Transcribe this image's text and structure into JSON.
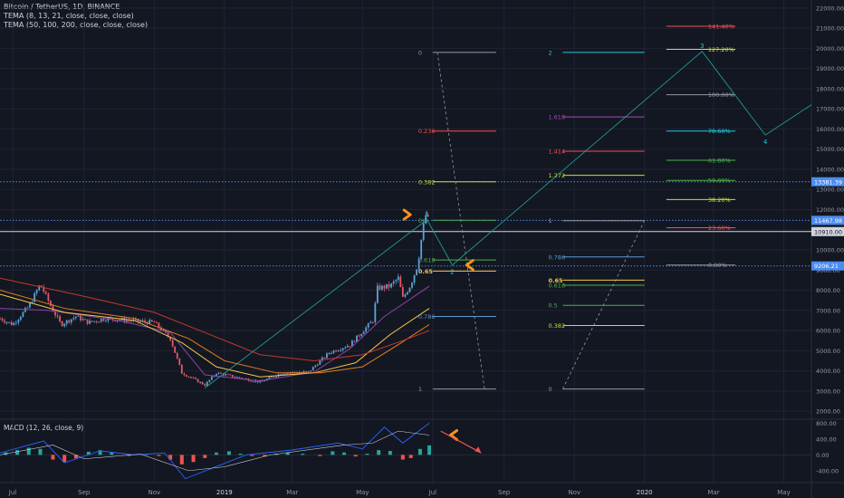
{
  "header": {
    "symbol_line": "Bitcoin / TetherUS, 1D, BINANCE",
    "indicator1": "TEMA (8, 13, 21, close, close, close)",
    "indicator2": "TEMA (50, 100, 200, close, close, close)"
  },
  "macd_label": "MACD (12, 26, close, 9)",
  "colors": {
    "background": "#131722",
    "grid": "#1f2433",
    "up_candle": "#5aa3d6",
    "down_candle": "#e05a6b",
    "tema_fast": "#8e44ad",
    "tema_mid": "#e06aa8",
    "tema_slow": "#b57edc",
    "tema50": "#f2c94c",
    "tema100": "#e67e22",
    "tema200": "#c0392b",
    "price_line_blue": "#4c8cf0",
    "price_line_white": "#d1d4dc",
    "arrow": "#f7931a",
    "hist_up": "#26a69a",
    "hist_down": "#ef5350"
  },
  "chart_data": {
    "type": "candlestick",
    "symbol": "Bitcoin / TetherUS",
    "interval": "1D",
    "exchange": "BINANCE",
    "x_ticks": [
      "Jul",
      "Sep",
      "Nov",
      "2019",
      "Mar",
      "May",
      "Jul",
      "Sep",
      "Nov",
      "2020",
      "Mar",
      "May"
    ],
    "y_ticks": [
      "2000.00",
      "3000.00",
      "4000.00",
      "5000.00",
      "6000.00",
      "7000.00",
      "8000.00",
      "9000.00",
      "10000.00",
      "11000.00",
      "12000.00",
      "13000.00",
      "14000.00",
      "15000.00",
      "16000.00",
      "17000.00",
      "18000.00",
      "19000.00",
      "20000.00",
      "21000.00",
      "22000.00"
    ],
    "ylim": [
      1600,
      22400
    ],
    "x_range": [
      "2018-06-20",
      "2020-05-25"
    ],
    "price_path": [
      [
        "2018-06-20",
        6600
      ],
      [
        "2018-07-01",
        6300
      ],
      [
        "2018-07-15",
        7200
      ],
      [
        "2018-07-25",
        8300
      ],
      [
        "2018-08-05",
        7000
      ],
      [
        "2018-08-12",
        6300
      ],
      [
        "2018-08-25",
        6700
      ],
      [
        "2018-09-05",
        6400
      ],
      [
        "2018-09-20",
        6600
      ],
      [
        "2018-10-10",
        6500
      ],
      [
        "2018-11-01",
        6400
      ],
      [
        "2018-11-15",
        5600
      ],
      [
        "2018-11-25",
        3900
      ],
      [
        "2018-12-15",
        3300
      ],
      [
        "2018-12-25",
        3900
      ],
      [
        "2019-01-10",
        3700
      ],
      [
        "2019-02-01",
        3450
      ],
      [
        "2019-02-20",
        3900
      ],
      [
        "2019-03-15",
        3950
      ],
      [
        "2019-04-02",
        4900
      ],
      [
        "2019-04-20",
        5300
      ],
      [
        "2019-05-10",
        6500
      ],
      [
        "2019-05-14",
        8100
      ],
      [
        "2019-05-25",
        8200
      ],
      [
        "2019-06-01",
        8600
      ],
      [
        "2019-06-05",
        7600
      ],
      [
        "2019-06-12",
        8300
      ],
      [
        "2019-06-18",
        9300
      ],
      [
        "2019-06-22",
        10900
      ],
      [
        "2019-06-26",
        12000
      ],
      [
        "2019-06-28",
        11000
      ]
    ],
    "tema_lines": [
      {
        "name": "TEMA fast",
        "color": "#8e44ad",
        "points": [
          [
            "2018-06-20",
            7100
          ],
          [
            "2018-08-01",
            7000
          ],
          [
            "2018-10-01",
            6500
          ],
          [
            "2018-11-15",
            5900
          ],
          [
            "2018-12-15",
            3800
          ],
          [
            "2019-02-01",
            3500
          ],
          [
            "2019-03-20",
            3950
          ],
          [
            "2019-04-20",
            5100
          ],
          [
            "2019-05-20",
            6700
          ],
          [
            "2019-06-28",
            8200
          ]
        ]
      },
      {
        "name": "TEMA 50",
        "color": "#f2c94c",
        "points": [
          [
            "2018-06-20",
            7800
          ],
          [
            "2018-08-15",
            6900
          ],
          [
            "2018-10-15",
            6500
          ],
          [
            "2018-11-25",
            5400
          ],
          [
            "2018-12-25",
            4200
          ],
          [
            "2019-02-01",
            3700
          ],
          [
            "2019-03-20",
            3900
          ],
          [
            "2019-04-25",
            4400
          ],
          [
            "2019-05-25",
            5800
          ],
          [
            "2019-06-28",
            7100
          ]
        ]
      },
      {
        "name": "TEMA 100",
        "color": "#e67e22",
        "points": [
          [
            "2018-06-20",
            8000
          ],
          [
            "2018-08-15",
            7100
          ],
          [
            "2018-10-15",
            6600
          ],
          [
            "2018-12-01",
            5600
          ],
          [
            "2019-01-01",
            4500
          ],
          [
            "2019-02-15",
            3900
          ],
          [
            "2019-03-25",
            3900
          ],
          [
            "2019-05-01",
            4200
          ],
          [
            "2019-06-01",
            5300
          ],
          [
            "2019-06-28",
            6300
          ]
        ]
      },
      {
        "name": "TEMA 200",
        "color": "#c0392b",
        "points": [
          [
            "2018-06-20",
            8600
          ],
          [
            "2018-09-01",
            7700
          ],
          [
            "2018-11-01",
            6900
          ],
          [
            "2018-12-15",
            5900
          ],
          [
            "2019-02-01",
            4800
          ],
          [
            "2019-03-20",
            4500
          ],
          [
            "2019-05-01",
            4800
          ],
          [
            "2019-06-05",
            5500
          ],
          [
            "2019-06-28",
            6000
          ]
        ]
      }
    ],
    "price_lines": [
      {
        "price": 13381.39,
        "label": "13381.39",
        "color": "#4c8cf0",
        "style": "dotted"
      },
      {
        "price": 11467.98,
        "label": "11467.98",
        "color": "#4c8cf0",
        "style": "dotted"
      },
      {
        "price": 10910.0,
        "label": "10910.00",
        "color": "#d1d4dc",
        "style": "solid"
      },
      {
        "price": 9206.21,
        "label": "9206.21",
        "color": "#4c8cf0",
        "style": "dotted"
      }
    ],
    "fib_sets": [
      {
        "name": "left",
        "x1": "2019-07-01",
        "x2": "2019-08-25",
        "levels": [
          {
            "label": "0",
            "price": 19800,
            "color": "#9598a1"
          },
          {
            "label": "0.236",
            "price": 15900,
            "color": "#ef5350"
          },
          {
            "label": "0.382",
            "price": 13380,
            "color": "#cddc39"
          },
          {
            "label": "0.5",
            "price": 11470,
            "color": "#4caf50"
          },
          {
            "label": "0.618",
            "price": 9500,
            "color": "#4caf50"
          },
          {
            "label": "0.65",
            "price": 8950,
            "color": "#f2c94c"
          },
          {
            "label": "0.786",
            "price": 6700,
            "color": "#5c9bd1"
          },
          {
            "label": "1",
            "price": 3100,
            "color": "#9598a1"
          }
        ]
      },
      {
        "name": "extension",
        "x1": "2019-10-22",
        "x2": "2020-01-01",
        "levels": [
          {
            "label": "2",
            "price": 19800,
            "color": "#26c6da"
          },
          {
            "label": "1.618",
            "price": 16600,
            "color": "#ab47bc"
          },
          {
            "label": "1.414",
            "price": 14900,
            "color": "#ef5350"
          },
          {
            "label": "1.272",
            "price": 13700,
            "color": "#cddc39"
          },
          {
            "label": "1",
            "price": 11450,
            "color": "#9598a1"
          },
          {
            "label": "0.786",
            "price": 9650,
            "color": "#5c9bd1"
          },
          {
            "label": "0.65",
            "price": 8500,
            "color": "#f2c94c"
          },
          {
            "label": "0.618",
            "price": 8250,
            "color": "#4caf50"
          },
          {
            "label": "0.5",
            "price": 7250,
            "color": "#4caf50"
          },
          {
            "label": "0.382",
            "price": 6250,
            "color": "#cddc39"
          },
          {
            "label": "0",
            "price": 3100,
            "color": "#9598a1"
          }
        ]
      },
      {
        "name": "right",
        "x1": "2020-01-20",
        "x2": "2020-03-20",
        "levels": [
          {
            "label": "141.40%",
            "price": 21100,
            "color": "#ef5350"
          },
          {
            "label": "127.20%",
            "price": 19950,
            "color": "#cddc39"
          },
          {
            "label": "100.00%",
            "price": 17700,
            "color": "#9598a1"
          },
          {
            "label": "78.60%",
            "price": 15900,
            "color": "#26c6da"
          },
          {
            "label": "61.80%",
            "price": 14450,
            "color": "#4caf50"
          },
          {
            "label": "50.00%",
            "price": 13450,
            "color": "#4caf50"
          },
          {
            "label": "38.20%",
            "price": 12500,
            "color": "#cddc39"
          },
          {
            "label": "23.60%",
            "price": 11100,
            "color": "#ef5350"
          },
          {
            "label": "0.00%",
            "price": 9250,
            "color": "#9598a1"
          }
        ]
      }
    ],
    "wave_points": [
      {
        "label": "",
        "date": "2018-12-15",
        "price": 3150
      },
      {
        "label": "1",
        "date": "2019-06-26",
        "price": 11500
      },
      {
        "label": "2",
        "date": "2019-07-18",
        "price": 9250
      },
      {
        "label": "3",
        "date": "2020-02-20",
        "price": 19850
      },
      {
        "label": "4",
        "date": "2020-04-15",
        "price": 15700
      },
      {
        "label": "",
        "date": "2020-05-25",
        "price": 17200
      }
    ],
    "dashed_paths": [
      [
        [
          "2019-07-05",
          19800
        ],
        [
          "2019-08-15",
          3100
        ]
      ],
      [
        [
          "2019-10-22",
          3100
        ],
        [
          "2020-01-01",
          11450
        ]
      ]
    ],
    "arrows": [
      {
        "direction": "right",
        "date": "2019-06-10",
        "price": 11750
      },
      {
        "direction": "left",
        "date": "2019-08-01",
        "price": 9250
      },
      {
        "direction": "left",
        "date": "2019-07-18",
        "macd": 500
      }
    ],
    "macd": {
      "name": "MACD (12, 26, close, 9)",
      "y_ticks": [
        "800.00",
        "400.00",
        "0.00",
        "-400.00"
      ],
      "ylim": [
        -700,
        900
      ],
      "macd_line": [
        [
          "2018-06-20",
          50
        ],
        [
          "2018-07-28",
          350
        ],
        [
          "2018-08-15",
          -200
        ],
        [
          "2018-09-15",
          100
        ],
        [
          "2018-10-15",
          0
        ],
        [
          "2018-11-10",
          50
        ],
        [
          "2018-11-28",
          -600
        ],
        [
          "2018-12-20",
          -350
        ],
        [
          "2019-01-20",
          0
        ],
        [
          "2019-02-28",
          120
        ],
        [
          "2019-04-10",
          300
        ],
        [
          "2019-05-01",
          150
        ],
        [
          "2019-05-20",
          700
        ],
        [
          "2019-06-05",
          300
        ],
        [
          "2019-06-28",
          800
        ]
      ],
      "signal_line": [
        [
          "2018-06-20",
          0
        ],
        [
          "2018-08-05",
          250
        ],
        [
          "2018-09-01",
          -100
        ],
        [
          "2018-10-20",
          20
        ],
        [
          "2018-12-01",
          -400
        ],
        [
          "2019-01-01",
          -300
        ],
        [
          "2019-02-10",
          0
        ],
        [
          "2019-04-15",
          250
        ],
        [
          "2019-05-10",
          300
        ],
        [
          "2019-06-01",
          600
        ],
        [
          "2019-06-28",
          500
        ]
      ],
      "histogram": [
        [
          "2018-06-25",
          60
        ],
        [
          "2018-07-05",
          120
        ],
        [
          "2018-07-15",
          180
        ],
        [
          "2018-07-25",
          150
        ],
        [
          "2018-08-05",
          -120
        ],
        [
          "2018-08-15",
          -180
        ],
        [
          "2018-08-25",
          -90
        ],
        [
          "2018-09-05",
          80
        ],
        [
          "2018-09-15",
          120
        ],
        [
          "2018-09-25",
          60
        ],
        [
          "2018-10-10",
          -30
        ],
        [
          "2018-10-25",
          20
        ],
        [
          "2018-11-05",
          -30
        ],
        [
          "2018-11-15",
          -120
        ],
        [
          "2018-11-25",
          -240
        ],
        [
          "2018-12-05",
          -180
        ],
        [
          "2018-12-15",
          -80
        ],
        [
          "2018-12-25",
          60
        ],
        [
          "2019-01-05",
          90
        ],
        [
          "2019-01-15",
          30
        ],
        [
          "2019-01-25",
          -30
        ],
        [
          "2019-02-05",
          -40
        ],
        [
          "2019-02-15",
          30
        ],
        [
          "2019-02-25",
          60
        ],
        [
          "2019-03-10",
          30
        ],
        [
          "2019-03-25",
          -30
        ],
        [
          "2019-04-05",
          90
        ],
        [
          "2019-04-15",
          60
        ],
        [
          "2019-04-25",
          -40
        ],
        [
          "2019-05-05",
          30
        ],
        [
          "2019-05-15",
          120
        ],
        [
          "2019-05-25",
          100
        ],
        [
          "2019-06-05",
          -120
        ],
        [
          "2019-06-12",
          -80
        ],
        [
          "2019-06-20",
          150
        ],
        [
          "2019-06-28",
          240
        ]
      ],
      "projection_arrow": [
        [
          "2019-07-08",
          600
        ],
        [
          "2019-08-12",
          50
        ]
      ]
    }
  }
}
